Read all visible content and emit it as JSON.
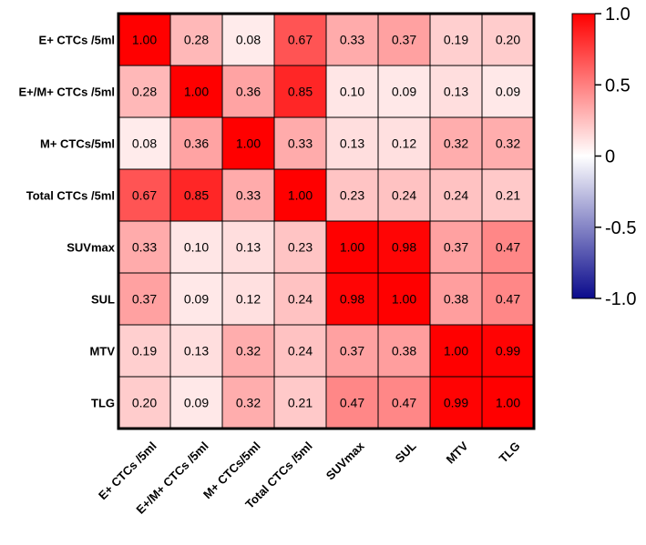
{
  "chart_data": {
    "type": "heatmap",
    "title": "",
    "xlabel": "",
    "ylabel": "",
    "rows": [
      "E+ CTCs /5ml",
      "E+/M+ CTCs /5ml",
      "M+ CTCs/5ml",
      "Total CTCs /5ml",
      "SUVmax",
      "SUL",
      "MTV",
      "TLG"
    ],
    "columns": [
      "E+ CTCs /5ml",
      "E+/M+ CTCs /5ml",
      "M+ CTCs/5ml",
      "Total CTCs /5ml",
      "SUVmax",
      "SUL",
      "MTV",
      "TLG"
    ],
    "values": [
      [
        1.0,
        0.28,
        0.08,
        0.67,
        0.33,
        0.37,
        0.19,
        0.2
      ],
      [
        0.28,
        1.0,
        0.36,
        0.85,
        0.1,
        0.09,
        0.13,
        0.09
      ],
      [
        0.08,
        0.36,
        1.0,
        0.33,
        0.13,
        0.12,
        0.32,
        0.32
      ],
      [
        0.67,
        0.85,
        0.33,
        1.0,
        0.23,
        0.24,
        0.24,
        0.21
      ],
      [
        0.33,
        0.1,
        0.13,
        0.23,
        1.0,
        0.98,
        0.37,
        0.47
      ],
      [
        0.37,
        0.09,
        0.12,
        0.24,
        0.98,
        1.0,
        0.38,
        0.47
      ],
      [
        0.19,
        0.13,
        0.32,
        0.24,
        0.37,
        0.38,
        1.0,
        0.99
      ],
      [
        0.2,
        0.09,
        0.32,
        0.21,
        0.47,
        0.47,
        0.99,
        1.0
      ]
    ],
    "value_labels": [
      [
        "1.00",
        "0.28",
        "0.08",
        "0.67",
        "0.33",
        "0.37",
        "0.19",
        "0.20"
      ],
      [
        "0.28",
        "1.00",
        "0.36",
        "0.85",
        "0.10",
        "0.09",
        "0.13",
        "0.09"
      ],
      [
        "0.08",
        "0.36",
        "1.00",
        "0.33",
        "0.13",
        "0.12",
        "0.32",
        "0.32"
      ],
      [
        "0.67",
        "0.85",
        "0.33",
        "1.00",
        "0.23",
        "0.24",
        "0.24",
        "0.21"
      ],
      [
        "0.33",
        "0.10",
        "0.13",
        "0.23",
        "1.00",
        "0.98",
        "0.37",
        "0.47"
      ],
      [
        "0.37",
        "0.09",
        "0.12",
        "0.24",
        "0.98",
        "1.00",
        "0.38",
        "0.47"
      ],
      [
        "0.19",
        "0.13",
        "0.32",
        "0.24",
        "0.37",
        "0.38",
        "1.00",
        "0.99"
      ],
      [
        "0.20",
        "0.09",
        "0.32",
        "0.21",
        "0.47",
        "0.47",
        "0.99",
        "1.00"
      ]
    ],
    "color_scale": {
      "min": -1.0,
      "max": 1.0,
      "min_color": "#0a0a8c",
      "mid_color": "#ffffff",
      "max_color": "#ff0000",
      "tick_values": [
        1.0,
        0.5,
        0,
        -0.5,
        -1.0
      ],
      "tick_labels": [
        "1.0",
        "0.5",
        "0",
        "-0.5",
        "-1.0"
      ]
    },
    "colorbar_placement": "right",
    "grid": true
  }
}
